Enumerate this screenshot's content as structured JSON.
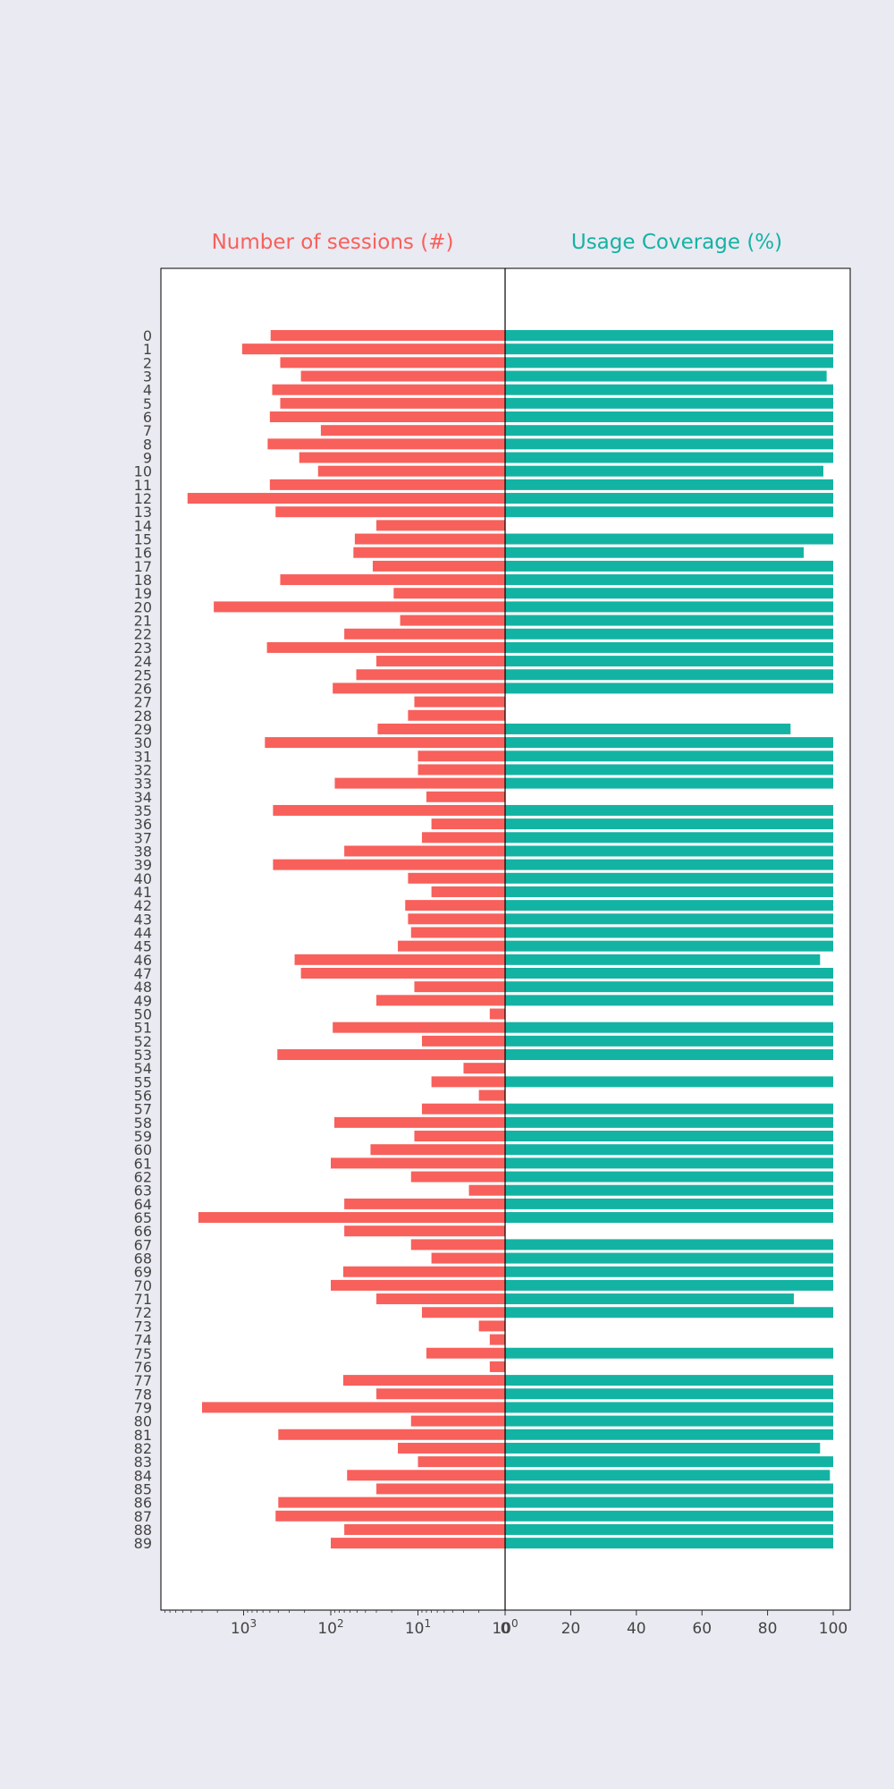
{
  "chart_data": {
    "type": "bar",
    "orientation": "horizontal-butterfly",
    "categories": [
      "0",
      "1",
      "2",
      "3",
      "4",
      "5",
      "6",
      "7",
      "8",
      "9",
      "10",
      "11",
      "12",
      "13",
      "14",
      "15",
      "16",
      "17",
      "18",
      "19",
      "20",
      "21",
      "22",
      "23",
      "24",
      "25",
      "26",
      "27",
      "28",
      "29",
      "30",
      "31",
      "32",
      "33",
      "34",
      "35",
      "36",
      "37",
      "38",
      "39",
      "40",
      "41",
      "42",
      "43",
      "44",
      "45",
      "46",
      "47",
      "48",
      "49",
      "50",
      "51",
      "52",
      "53",
      "54",
      "55",
      "56",
      "57",
      "58",
      "59",
      "60",
      "61",
      "62",
      "63",
      "64",
      "65",
      "66",
      "67",
      "68",
      "69",
      "70",
      "71",
      "72",
      "73",
      "74",
      "75",
      "76",
      "77",
      "78",
      "79",
      "80",
      "81",
      "82",
      "83",
      "84",
      "85",
      "86",
      "87",
      "88",
      "89"
    ],
    "left": {
      "title": "Number of sessions (#)",
      "color": "#f8605b",
      "scale": "log",
      "ticks": [
        {
          "value": 1000,
          "base": "10",
          "exp": "3"
        },
        {
          "value": 100,
          "base": "10",
          "exp": "2"
        },
        {
          "value": 10,
          "base": "10",
          "exp": "1"
        },
        {
          "value": 1,
          "base": "10",
          "exp": "0"
        }
      ],
      "values": [
        490,
        1040,
        380,
        220,
        470,
        380,
        500,
        130,
        530,
        230,
        140,
        500,
        4400,
        430,
        30,
        53,
        55,
        33,
        380,
        19,
        2200,
        16,
        70,
        540,
        30,
        51,
        95,
        11,
        13,
        29,
        570,
        10,
        10,
        90,
        8,
        460,
        7,
        9,
        70,
        460,
        13,
        7,
        14,
        13,
        12,
        17,
        260,
        220,
        11,
        30,
        1.5,
        95,
        9,
        410,
        3,
        7,
        2,
        9,
        91,
        11,
        35,
        100,
        12,
        2.6,
        70,
        3300,
        70,
        12,
        7,
        72,
        100,
        30,
        9,
        2,
        1.5,
        8,
        1.5,
        72,
        30,
        3000,
        12,
        400,
        17,
        10,
        65,
        30,
        400,
        430,
        70,
        100
      ]
    },
    "right": {
      "title": "Usage Coverage (%)",
      "color": "#13b3a3",
      "xlim": [
        0,
        100
      ],
      "ticks": [
        "0",
        "20",
        "40",
        "60",
        "80",
        "100"
      ],
      "values": [
        100,
        100,
        100,
        98,
        100,
        100,
        100,
        100,
        100,
        100,
        97,
        100,
        100,
        100,
        0,
        100,
        91,
        100,
        100,
        100,
        100,
        100,
        100,
        100,
        100,
        100,
        100,
        0,
        0,
        87,
        100,
        100,
        100,
        100,
        0,
        100,
        100,
        100,
        100,
        100,
        100,
        100,
        100,
        100,
        100,
        100,
        96,
        100,
        100,
        100,
        0,
        100,
        100,
        100,
        0,
        100,
        0,
        100,
        100,
        100,
        100,
        100,
        100,
        100,
        100,
        100,
        0,
        100,
        100,
        100,
        100,
        88,
        100,
        0,
        0,
        100,
        0,
        100,
        100,
        100,
        100,
        100,
        96,
        100,
        99,
        100,
        100,
        100,
        100,
        100
      ]
    }
  }
}
